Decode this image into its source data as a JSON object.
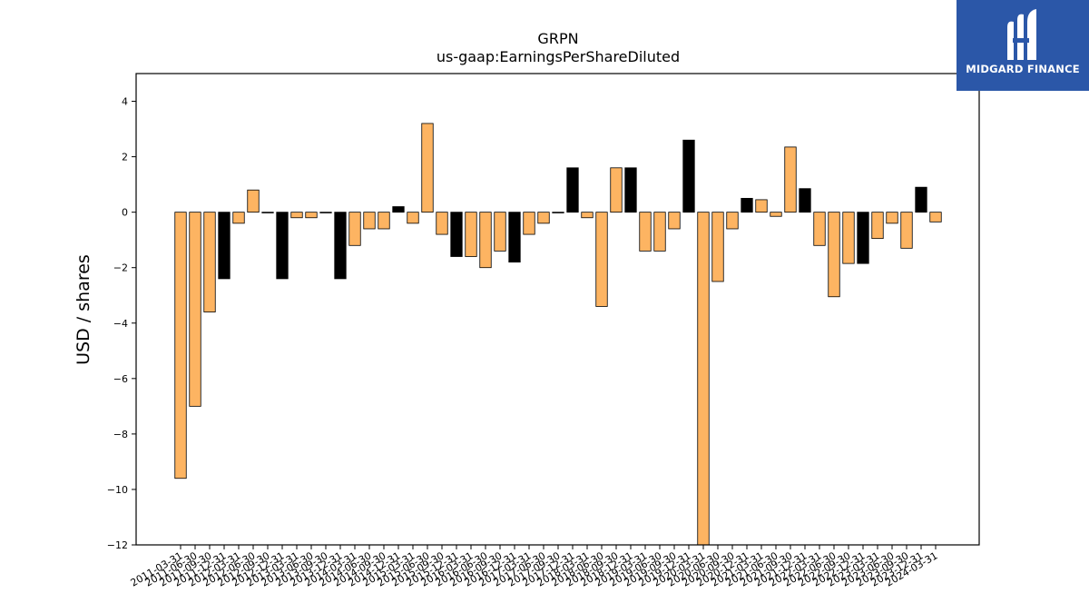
{
  "chart_data": {
    "type": "bar",
    "title": "GRPN",
    "subtitle": "us-gaap:EarningsPerShareDiluted",
    "ylabel": "USD / shares",
    "xlabel": "",
    "ylim": [
      -12,
      5
    ],
    "yticks": [
      4,
      2,
      0,
      -2,
      -4,
      -6,
      -8,
      -10,
      -12
    ],
    "ytick_labels": [
      "4",
      "2",
      "0",
      "−2",
      "−4",
      "−6",
      "−8",
      "−10",
      "−12"
    ],
    "grid": false,
    "legend": "none",
    "colors": {
      "quarterly": "#fdb462",
      "annual": "#000000",
      "edge": "#000000"
    },
    "categories": [
      "2011-03-31",
      "2011-06-30",
      "2011-09-30",
      "2011-12-31",
      "2012-03-31",
      "2012-06-30",
      "2012-09-30",
      "2012-12-31",
      "2013-03-31",
      "2013-06-30",
      "2013-09-30",
      "2013-12-31",
      "2014-03-31",
      "2014-06-30",
      "2014-09-30",
      "2014-12-31",
      "2015-03-31",
      "2015-06-30",
      "2015-09-30",
      "2015-12-31",
      "2016-03-31",
      "2016-06-30",
      "2016-09-30",
      "2016-12-31",
      "2017-03-31",
      "2017-06-30",
      "2017-09-30",
      "2017-12-31",
      "2018-03-31",
      "2018-06-30",
      "2018-09-30",
      "2018-12-31",
      "2019-03-31",
      "2019-06-30",
      "2019-09-30",
      "2019-12-31",
      "2020-03-31",
      "2020-06-30",
      "2020-09-30",
      "2020-12-31",
      "2021-03-31",
      "2021-06-30",
      "2021-09-30",
      "2021-12-31",
      "2022-03-31",
      "2022-06-30",
      "2022-09-30",
      "2022-12-31",
      "2023-03-31",
      "2023-06-30",
      "2023-09-30",
      "2023-12-31",
      "2024-03-31"
    ],
    "values": [
      -9.6,
      -7.0,
      -3.6,
      -2.4,
      -0.4,
      0.8,
      0.0,
      -2.4,
      -0.2,
      -0.2,
      0.0,
      -2.4,
      -1.2,
      -0.6,
      -0.6,
      0.2,
      -0.4,
      3.2,
      -0.8,
      -1.6,
      -1.6,
      -2.0,
      -1.4,
      -1.8,
      -0.8,
      -0.4,
      0.0,
      1.6,
      -0.2,
      -3.4,
      1.6,
      1.6,
      -1.4,
      -1.4,
      -0.6,
      2.6,
      -12.0,
      -2.5,
      -0.6,
      0.5,
      0.45,
      -0.15,
      2.35,
      0.85,
      -1.2,
      -3.05,
      -1.85,
      -1.85,
      -0.95,
      -0.4,
      -1.3,
      0.9,
      -0.35
    ],
    "annual_flags": [
      0,
      0,
      0,
      1,
      0,
      0,
      0,
      1,
      0,
      0,
      0,
      1,
      0,
      0,
      0,
      1,
      0,
      0,
      0,
      1,
      0,
      0,
      0,
      1,
      0,
      0,
      0,
      1,
      0,
      0,
      0,
      1,
      0,
      0,
      0,
      1,
      0,
      0,
      0,
      1,
      0,
      0,
      0,
      1,
      0,
      0,
      0,
      1,
      0,
      0,
      0,
      1,
      0
    ]
  },
  "logo": {
    "text": "MIDGARD FINANCE",
    "color": "#2b57a8"
  }
}
